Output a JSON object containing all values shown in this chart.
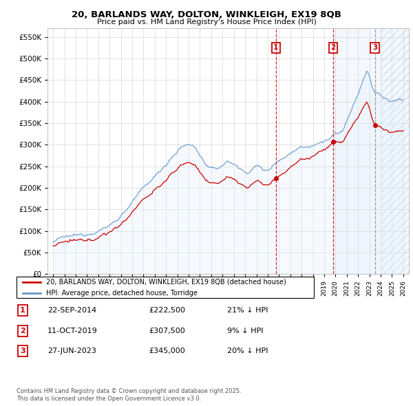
{
  "title": "20, BARLANDS WAY, DOLTON, WINKLEIGH, EX19 8QB",
  "subtitle": "Price paid vs. HM Land Registry's House Price Index (HPI)",
  "ylabel_ticks": [
    "£0",
    "£50K",
    "£100K",
    "£150K",
    "£200K",
    "£250K",
    "£300K",
    "£350K",
    "£400K",
    "£450K",
    "£500K",
    "£550K"
  ],
  "ytick_values": [
    0,
    50000,
    100000,
    150000,
    200000,
    250000,
    300000,
    350000,
    400000,
    450000,
    500000,
    550000
  ],
  "xlim_start": 1994.5,
  "xlim_end": 2026.5,
  "ylim_min": 0,
  "ylim_max": 570000,
  "purchase_dates": [
    "22-SEP-2014",
    "11-OCT-2019",
    "27-JUN-2023"
  ],
  "purchase_prices": [
    222500,
    307500,
    345000
  ],
  "purchase_years": [
    2014.73,
    2019.78,
    2023.49
  ],
  "purchase_labels": [
    "1",
    "2",
    "3"
  ],
  "purchase_hpi_pct": [
    "21% ↓ HPI",
    "9% ↓ HPI",
    "20% ↓ HPI"
  ],
  "legend_property": "20, BARLANDS WAY, DOLTON, WINKLEIGH, EX19 8QB (detached house)",
  "legend_hpi": "HPI: Average price, detached house, Torridge",
  "footer1": "Contains HM Land Registry data © Crown copyright and database right 2025.",
  "footer2": "This data is licensed under the Open Government Licence v3.0.",
  "property_color": "#cc0000",
  "hpi_color": "#6699cc",
  "hpi_fill_color": "#ddeeff",
  "shade_start": 2019.78,
  "shade_end": 2026.5,
  "background_color": "#ffffff",
  "grid_color": "#cccccc",
  "vline_colors": [
    "#cc0000",
    "#cc0000",
    "#888888"
  ]
}
